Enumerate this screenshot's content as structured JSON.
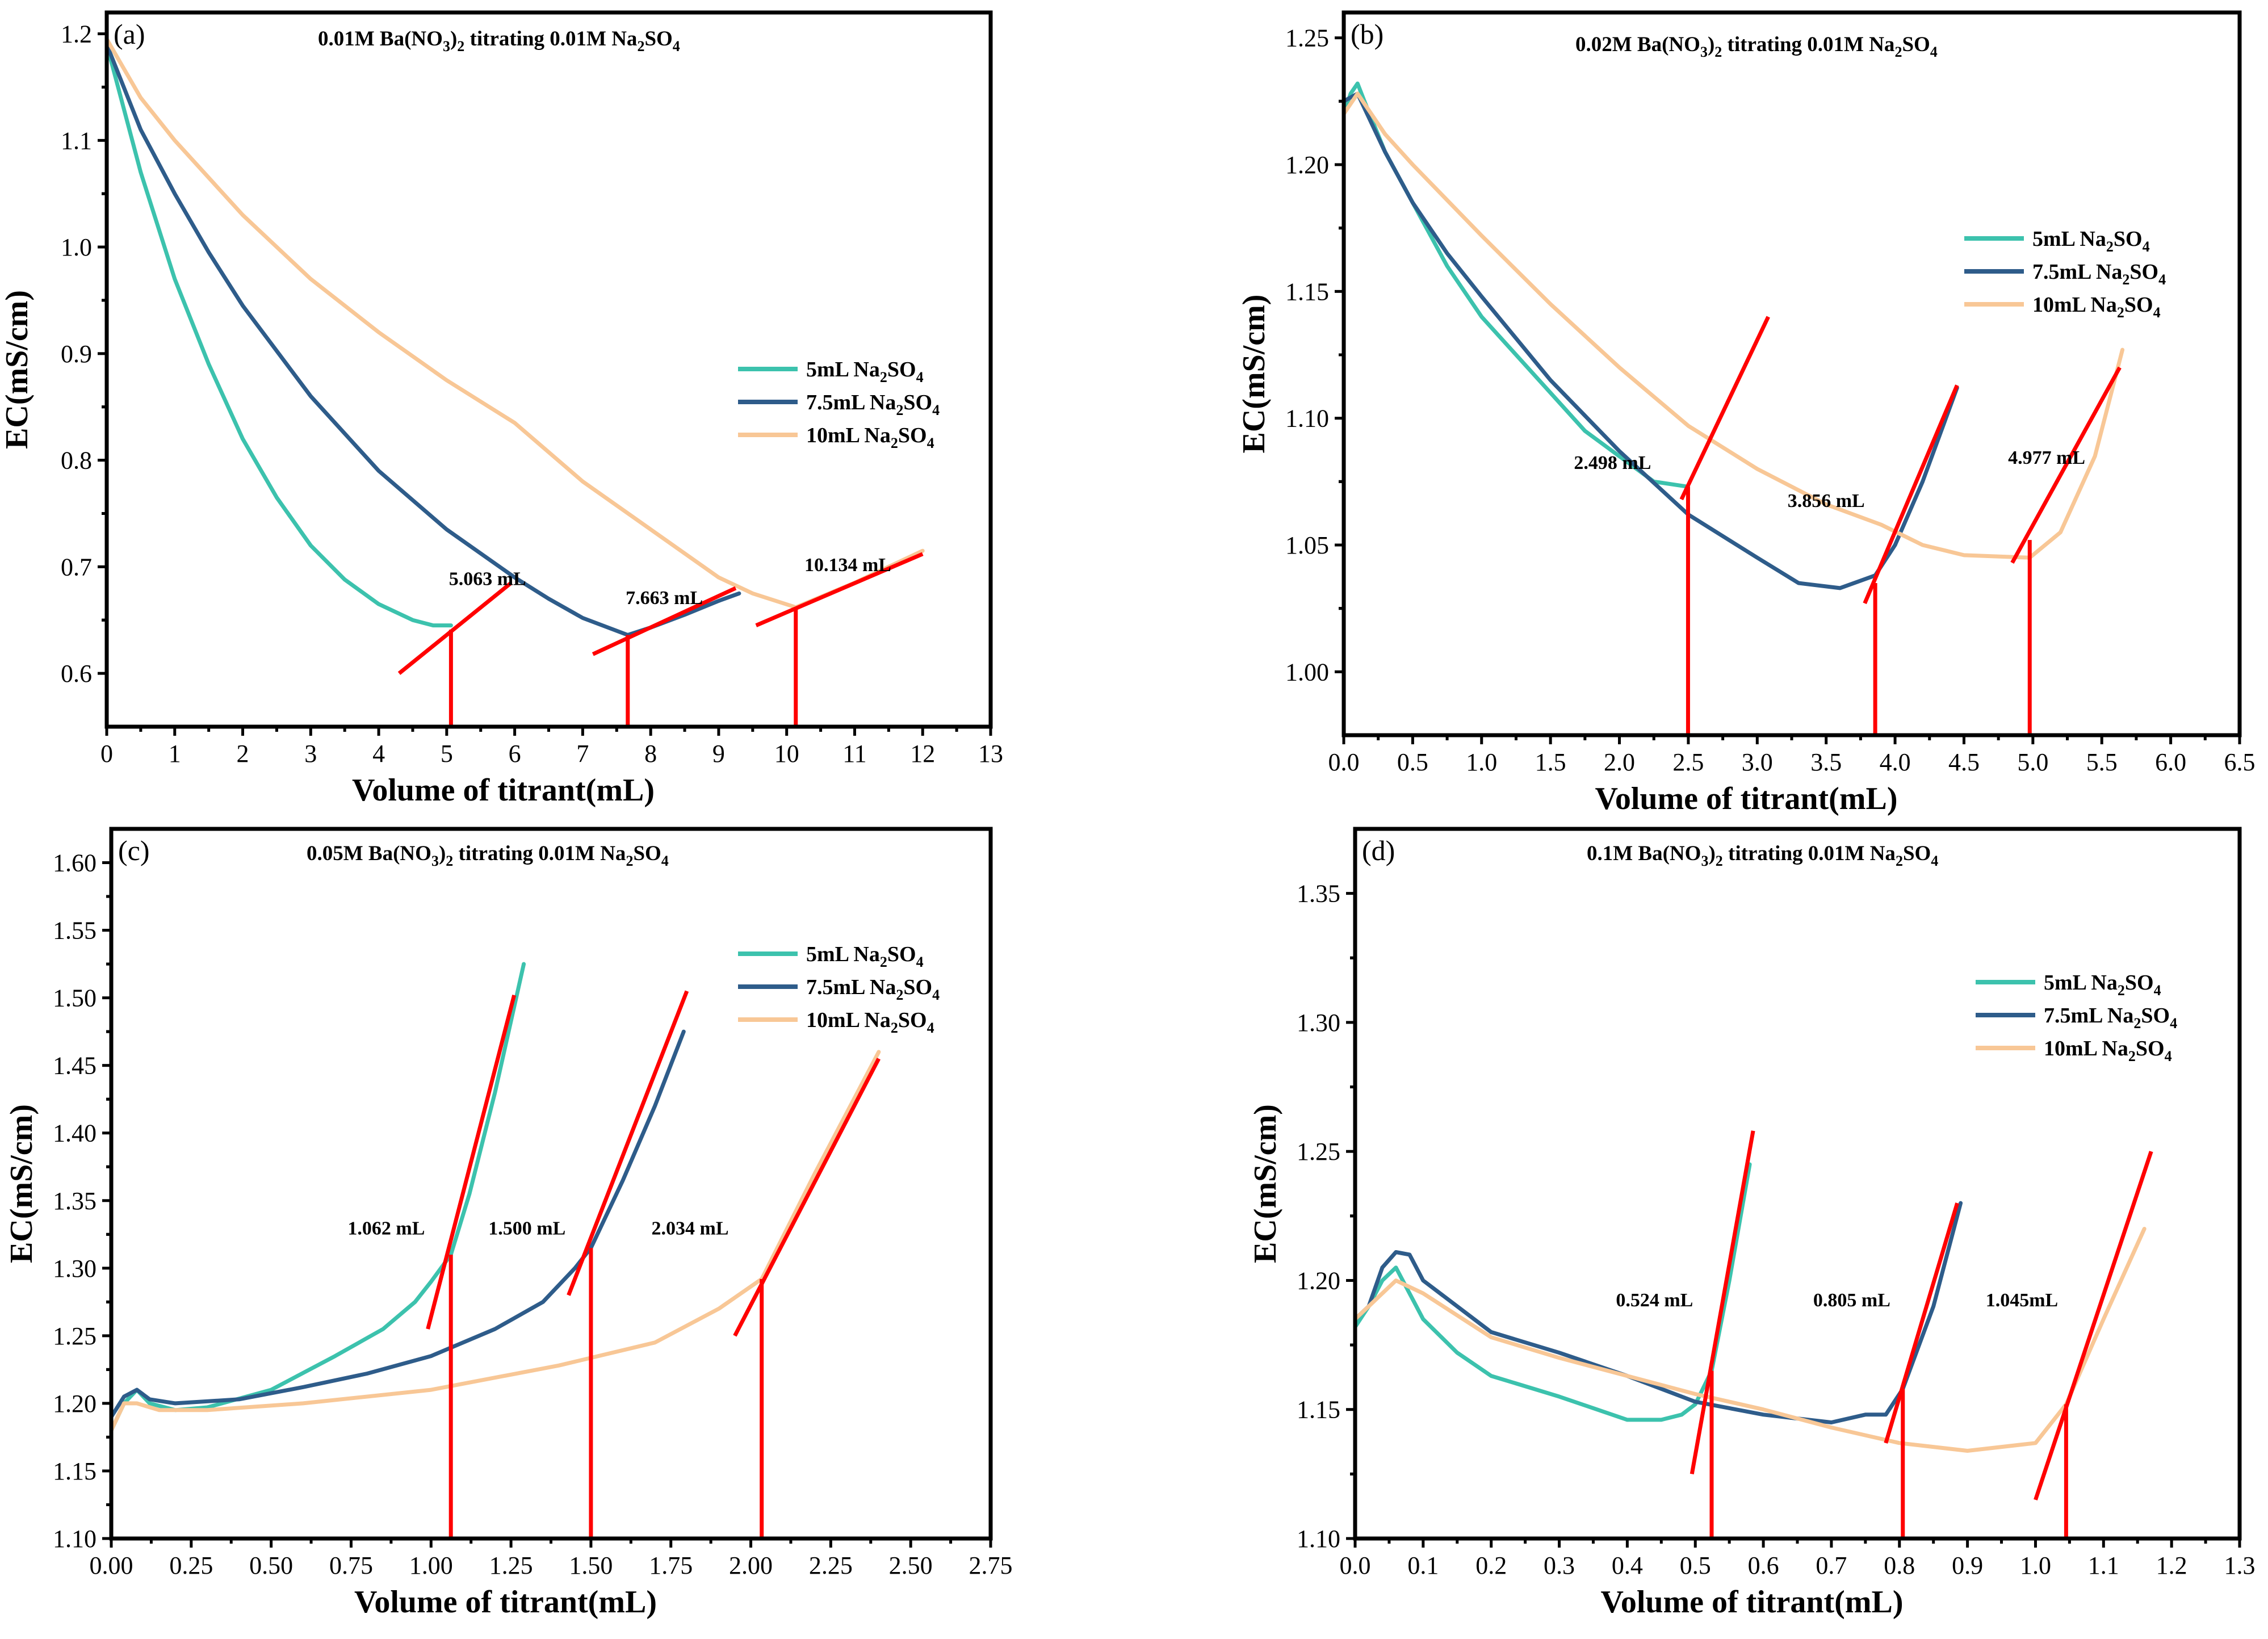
{
  "colors": {
    "teal": "#3cc2ad",
    "blue": "#2e5c8a",
    "peach": "#f8c796",
    "red": "#ff0000",
    "axis": "#000000"
  },
  "chart_data": [
    {
      "type": "line",
      "label": "(a)",
      "title": {
        "prefix": "0.01M Ba(NO",
        "sub1": "3",
        "mid": ")",
        "sub2": "2",
        "suffix": " titrating  0.01M Na",
        "sub3": "2",
        "tail": "SO",
        "sub4": "4"
      },
      "xlabel": "Volume of titrant(mL)",
      "ylabel": "EC(mS/cm)",
      "xlim": [
        0,
        13
      ],
      "ylim": [
        0.55,
        1.22
      ],
      "xticks": [
        0,
        1,
        2,
        3,
        4,
        5,
        6,
        7,
        8,
        9,
        10,
        11,
        12,
        13
      ],
      "xtick_labels": [
        "0",
        "1",
        "2",
        "3",
        "4",
        "5",
        "6",
        "7",
        "8",
        "9",
        "10",
        "11",
        "12",
        "13"
      ],
      "yticks": [
        0.6,
        0.7,
        0.8,
        0.9,
        1.0,
        1.1,
        1.2
      ],
      "ytick_labels": [
        "0.6",
        "0.7",
        "0.8",
        "0.9",
        "1.0",
        "1.1",
        "1.2"
      ],
      "legend_position": "center-right",
      "series": [
        {
          "name": "5mL Na2SO4",
          "label_main": "5mL Na",
          "label_sub1": "2",
          "label_mid": "SO",
          "label_sub2": "4",
          "color": "#3cc2ad",
          "x": [
            0,
            0.5,
            1,
            1.5,
            2,
            2.5,
            3,
            3.5,
            4,
            4.5,
            4.8,
            5.063
          ],
          "y": [
            1.19,
            1.07,
            0.97,
            0.89,
            0.82,
            0.765,
            0.72,
            0.688,
            0.665,
            0.65,
            0.645,
            0.645
          ]
        },
        {
          "name": "7.5mL Na2SO4",
          "label_main": "7.5mL Na",
          "label_sub1": "2",
          "label_mid": "SO",
          "label_sub2": "4",
          "color": "#2e5c8a",
          "x": [
            0,
            0.5,
            1,
            1.5,
            2,
            3,
            4,
            5,
            6,
            6.5,
            7,
            7.663,
            8,
            8.5,
            9,
            9.3
          ],
          "y": [
            1.19,
            1.11,
            1.05,
            0.995,
            0.945,
            0.86,
            0.79,
            0.735,
            0.69,
            0.67,
            0.652,
            0.636,
            0.643,
            0.655,
            0.668,
            0.675
          ]
        },
        {
          "name": "10mL Na2SO4",
          "label_main": "10mL Na",
          "label_sub1": "2",
          "label_mid": "SO",
          "label_sub2": "4",
          "color": "#f8c796",
          "x": [
            0,
            0.5,
            1,
            2,
            3,
            4,
            5,
            6,
            7,
            8,
            9,
            9.5,
            10.134,
            11,
            12
          ],
          "y": [
            1.195,
            1.14,
            1.1,
            1.03,
            0.97,
            0.92,
            0.875,
            0.835,
            0.78,
            0.735,
            0.69,
            0.675,
            0.662,
            0.685,
            0.715
          ]
        }
      ],
      "tangents": [
        {
          "x": [
            4.3,
            5.95
          ],
          "y": [
            0.6,
            0.685
          ]
        },
        {
          "x": [
            7.15,
            9.25
          ],
          "y": [
            0.618,
            0.68
          ]
        },
        {
          "x": [
            9.55,
            12.0
          ],
          "y": [
            0.645,
            0.712
          ]
        }
      ],
      "endpoints": [
        {
          "x": 5.063,
          "y": 0.641,
          "label": "5.063 mL",
          "label_x": 5.6,
          "label_y": 0.683
        },
        {
          "x": 7.663,
          "y": 0.636,
          "label": "7.663 mL",
          "label_x": 8.2,
          "label_y": 0.665
        },
        {
          "x": 10.134,
          "y": 0.662,
          "label": "10.134 mL",
          "label_x": 10.9,
          "label_y": 0.696
        }
      ]
    },
    {
      "type": "line",
      "label": "(b)",
      "title": {
        "prefix": "0.02M Ba(NO",
        "sub1": "3",
        "mid": ")",
        "sub2": "2",
        "suffix": " titrating  0.01M Na",
        "sub3": "2",
        "tail": "SO",
        "sub4": "4"
      },
      "xlabel": "Volume of titrant(mL)",
      "ylabel": "EC(mS/cm)",
      "xlim": [
        0,
        6.5
      ],
      "ylim": [
        0.975,
        1.26
      ],
      "xticks": [
        0,
        0.5,
        1,
        1.5,
        2,
        2.5,
        3,
        3.5,
        4,
        4.5,
        5,
        5.5,
        6,
        6.5
      ],
      "xtick_labels": [
        "0.0",
        "0.5",
        "1.0",
        "1.5",
        "2.0",
        "2.5",
        "3.0",
        "3.5",
        "4.0",
        "4.5",
        "5.0",
        "5.5",
        "6.0",
        "6.5"
      ],
      "yticks": [
        1.0,
        1.05,
        1.1,
        1.15,
        1.2,
        1.25
      ],
      "ytick_labels": [
        "1.00",
        "1.05",
        "1.10",
        "1.15",
        "1.20",
        "1.25"
      ],
      "legend_position": "upper-right",
      "series": [
        {
          "name": "5mL Na2SO4",
          "label_main": "5mL Na",
          "label_sub1": "2",
          "label_mid": "SO",
          "label_sub2": "4",
          "color": "#3cc2ad",
          "x": [
            0,
            0.05,
            0.1,
            0.15,
            0.3,
            0.5,
            0.75,
            1,
            1.25,
            1.5,
            1.75,
            2,
            2.25,
            2.498
          ],
          "y": [
            1.22,
            1.228,
            1.232,
            1.225,
            1.205,
            1.185,
            1.16,
            1.14,
            1.125,
            1.11,
            1.095,
            1.085,
            1.075,
            1.073
          ]
        },
        {
          "name": "7.5mL Na2SO4",
          "label_main": "7.5mL Na",
          "label_sub1": "2",
          "label_mid": "SO",
          "label_sub2": "4",
          "color": "#2e5c8a",
          "x": [
            0,
            0.1,
            0.3,
            0.5,
            0.75,
            1,
            1.5,
            2,
            2.5,
            3,
            3.3,
            3.6,
            3.856,
            4,
            4.2,
            4.45
          ],
          "y": [
            1.225,
            1.228,
            1.205,
            1.185,
            1.165,
            1.148,
            1.115,
            1.087,
            1.062,
            1.045,
            1.035,
            1.033,
            1.038,
            1.05,
            1.075,
            1.112
          ]
        },
        {
          "name": "10mL Na2SO4",
          "label_main": "10mL Na",
          "label_sub1": "2",
          "label_mid": "SO",
          "label_sub2": "4",
          "color": "#f8c796",
          "x": [
            0,
            0.1,
            0.3,
            0.5,
            1,
            1.5,
            2,
            2.5,
            3,
            3.5,
            3.9,
            4.2,
            4.5,
            4.977,
            5.2,
            5.45,
            5.65
          ],
          "y": [
            1.22,
            1.228,
            1.212,
            1.2,
            1.172,
            1.145,
            1.12,
            1.097,
            1.08,
            1.066,
            1.058,
            1.05,
            1.046,
            1.045,
            1.055,
            1.085,
            1.127
          ]
        }
      ],
      "tangents": [
        {
          "x": [
            2.45,
            3.08
          ],
          "y": [
            1.068,
            1.14
          ]
        },
        {
          "x": [
            3.78,
            4.45
          ],
          "y": [
            1.027,
            1.113
          ]
        },
        {
          "x": [
            4.85,
            5.63
          ],
          "y": [
            1.043,
            1.12
          ]
        }
      ],
      "endpoints": [
        {
          "x": 2.498,
          "y": 1.073,
          "label": "2.498 mL",
          "label_x": 1.95,
          "label_y": 1.08
        },
        {
          "x": 3.856,
          "y": 1.035,
          "label": "3.856 mL",
          "label_x": 3.5,
          "label_y": 1.065
        },
        {
          "x": 4.977,
          "y": 1.052,
          "label": "4.977 mL",
          "label_x": 5.1,
          "label_y": 1.082
        }
      ]
    },
    {
      "type": "line",
      "label": "(c)",
      "title": {
        "prefix": "0.05M Ba(NO",
        "sub1": "3",
        "mid": ")",
        "sub2": "2",
        "suffix": " titrating  0.01M Na",
        "sub3": "2",
        "tail": "SO",
        "sub4": "4"
      },
      "xlabel": "Volume of titrant(mL)",
      "ylabel": "EC(mS/cm)",
      "xlim": [
        0,
        2.75
      ],
      "ylim": [
        1.1,
        1.625
      ],
      "xticks": [
        0,
        0.25,
        0.5,
        0.75,
        1,
        1.25,
        1.5,
        1.75,
        2,
        2.25,
        2.5,
        2.75
      ],
      "xtick_labels": [
        "0.00",
        "0.25",
        "0.50",
        "0.75",
        "1.00",
        "1.25",
        "1.50",
        "1.75",
        "2.00",
        "2.25",
        "2.50",
        "2.75"
      ],
      "yticks": [
        1.1,
        1.15,
        1.2,
        1.25,
        1.3,
        1.35,
        1.4,
        1.45,
        1.5,
        1.55,
        1.6
      ],
      "ytick_labels": [
        "1.10",
        "1.15",
        "1.20",
        "1.25",
        "1.30",
        "1.35",
        "1.40",
        "1.45",
        "1.50",
        "1.55",
        "1.60"
      ],
      "legend_position": "upper-right",
      "series": [
        {
          "name": "5mL Na2SO4",
          "label_main": "5mL Na",
          "label_sub1": "2",
          "label_mid": "SO",
          "label_sub2": "4",
          "color": "#3cc2ad",
          "x": [
            0,
            0.04,
            0.08,
            0.12,
            0.2,
            0.3,
            0.5,
            0.7,
            0.85,
            0.95,
            1.0,
            1.062,
            1.12,
            1.2,
            1.29
          ],
          "y": [
            1.18,
            1.2,
            1.21,
            1.2,
            1.195,
            1.197,
            1.21,
            1.235,
            1.255,
            1.275,
            1.29,
            1.31,
            1.355,
            1.43,
            1.525
          ]
        },
        {
          "name": "7.5mL Na2SO4",
          "label_main": "7.5mL Na",
          "label_sub1": "2",
          "label_mid": "SO",
          "label_sub2": "4",
          "color": "#2e5c8a",
          "x": [
            0,
            0.04,
            0.08,
            0.12,
            0.2,
            0.4,
            0.6,
            0.8,
            1.0,
            1.2,
            1.35,
            1.45,
            1.5,
            1.6,
            1.7,
            1.79
          ],
          "y": [
            1.19,
            1.205,
            1.21,
            1.203,
            1.2,
            1.203,
            1.212,
            1.222,
            1.235,
            1.255,
            1.275,
            1.3,
            1.315,
            1.365,
            1.42,
            1.475
          ]
        },
        {
          "name": "10mL Na2SO4",
          "label_main": "10mL Na",
          "label_sub1": "2",
          "label_mid": "SO",
          "label_sub2": "4",
          "color": "#f8c796",
          "x": [
            0,
            0.04,
            0.08,
            0.15,
            0.3,
            0.6,
            1.0,
            1.4,
            1.7,
            1.9,
            2.034,
            2.2,
            2.4
          ],
          "y": [
            1.18,
            1.2,
            1.2,
            1.195,
            1.195,
            1.2,
            1.21,
            1.228,
            1.245,
            1.27,
            1.292,
            1.37,
            1.46
          ]
        }
      ],
      "tangents": [
        {
          "x": [
            0.99,
            1.26
          ],
          "y": [
            1.255,
            1.502
          ]
        },
        {
          "x": [
            1.43,
            1.8
          ],
          "y": [
            1.28,
            1.505
          ]
        },
        {
          "x": [
            1.95,
            2.4
          ],
          "y": [
            1.25,
            1.455
          ]
        }
      ],
      "endpoints": [
        {
          "x": 1.062,
          "y": 1.31,
          "label": "1.062 mL",
          "label_x": 0.86,
          "label_y": 1.325
        },
        {
          "x": 1.5,
          "y": 1.315,
          "label": "1.500 mL",
          "label_x": 1.3,
          "label_y": 1.325
        },
        {
          "x": 2.034,
          "y": 1.292,
          "label": "2.034 mL",
          "label_x": 1.81,
          "label_y": 1.325
        }
      ]
    },
    {
      "type": "line",
      "label": "(d)",
      "title": {
        "prefix": "0.1M Ba(NO",
        "sub1": "3",
        "mid": ")",
        "sub2": "2",
        "suffix": " titrating  0.01M Na",
        "sub3": "2",
        "tail": "SO",
        "sub4": "4"
      },
      "xlabel": "Volume of titrant(mL)",
      "ylabel": "EC(mS/cm)",
      "xlim": [
        0,
        1.3
      ],
      "ylim": [
        1.1,
        1.375
      ],
      "xticks": [
        0,
        0.1,
        0.2,
        0.3,
        0.4,
        0.5,
        0.6,
        0.7,
        0.8,
        0.9,
        1.0,
        1.1,
        1.2,
        1.3
      ],
      "xtick_labels": [
        "0.0",
        "0.1",
        "0.2",
        "0.3",
        "0.4",
        "0.5",
        "0.6",
        "0.7",
        "0.8",
        "0.9",
        "1.0",
        "1.1",
        "1.2",
        "1.3"
      ],
      "yticks": [
        1.1,
        1.15,
        1.2,
        1.25,
        1.3,
        1.35
      ],
      "ytick_labels": [
        "1.10",
        "1.15",
        "1.20",
        "1.25",
        "1.30",
        "1.35"
      ],
      "legend_position": "upper-right",
      "series": [
        {
          "name": "5mL Na2SO4",
          "label_main": "5mL Na",
          "label_sub1": "2",
          "label_mid": "SO",
          "label_sub2": "4",
          "color": "#3cc2ad",
          "x": [
            0,
            0.02,
            0.04,
            0.06,
            0.08,
            0.1,
            0.15,
            0.2,
            0.3,
            0.4,
            0.45,
            0.48,
            0.5,
            0.524,
            0.55,
            0.58
          ],
          "y": [
            1.182,
            1.19,
            1.2,
            1.205,
            1.195,
            1.185,
            1.172,
            1.163,
            1.155,
            1.146,
            1.146,
            1.148,
            1.152,
            1.165,
            1.2,
            1.245
          ]
        },
        {
          "name": "7.5mL Na2SO4",
          "label_main": "7.5mL Na",
          "label_sub1": "2",
          "label_mid": "SO",
          "label_sub2": "4",
          "color": "#2e5c8a",
          "x": [
            0,
            0.02,
            0.04,
            0.06,
            0.08,
            0.1,
            0.2,
            0.3,
            0.4,
            0.5,
            0.6,
            0.7,
            0.75,
            0.78,
            0.805,
            0.85,
            0.89
          ],
          "y": [
            1.185,
            1.19,
            1.205,
            1.211,
            1.21,
            1.2,
            1.18,
            1.172,
            1.163,
            1.153,
            1.148,
            1.145,
            1.148,
            1.148,
            1.158,
            1.19,
            1.23
          ]
        },
        {
          "name": "10mL Na2SO4",
          "label_main": "10mL Na",
          "label_sub1": "2",
          "label_mid": "SO",
          "label_sub2": "4",
          "color": "#f8c796",
          "x": [
            0,
            0.02,
            0.04,
            0.06,
            0.1,
            0.2,
            0.3,
            0.4,
            0.5,
            0.6,
            0.7,
            0.8,
            0.9,
            1.0,
            1.045,
            1.1,
            1.16
          ],
          "y": [
            1.185,
            1.19,
            1.195,
            1.2,
            1.195,
            1.178,
            1.17,
            1.163,
            1.156,
            1.15,
            1.143,
            1.137,
            1.134,
            1.137,
            1.152,
            1.185,
            1.22
          ]
        }
      ],
      "tangents": [
        {
          "x": [
            0.495,
            0.585
          ],
          "y": [
            1.125,
            1.258
          ]
        },
        {
          "x": [
            0.78,
            0.885
          ],
          "y": [
            1.137,
            1.23
          ]
        },
        {
          "x": [
            1.0,
            1.17
          ],
          "y": [
            1.115,
            1.25
          ]
        }
      ],
      "endpoints": [
        {
          "x": 0.524,
          "y": 1.165,
          "label": "0.524 mL",
          "label_x": 0.44,
          "label_y": 1.19
        },
        {
          "x": 0.805,
          "y": 1.158,
          "label": "0.805 mL",
          "label_x": 0.73,
          "label_y": 1.19
        },
        {
          "x": 1.045,
          "y": 1.152,
          "label": "1.045mL",
          "label_x": 0.98,
          "label_y": 1.19
        }
      ]
    }
  ]
}
